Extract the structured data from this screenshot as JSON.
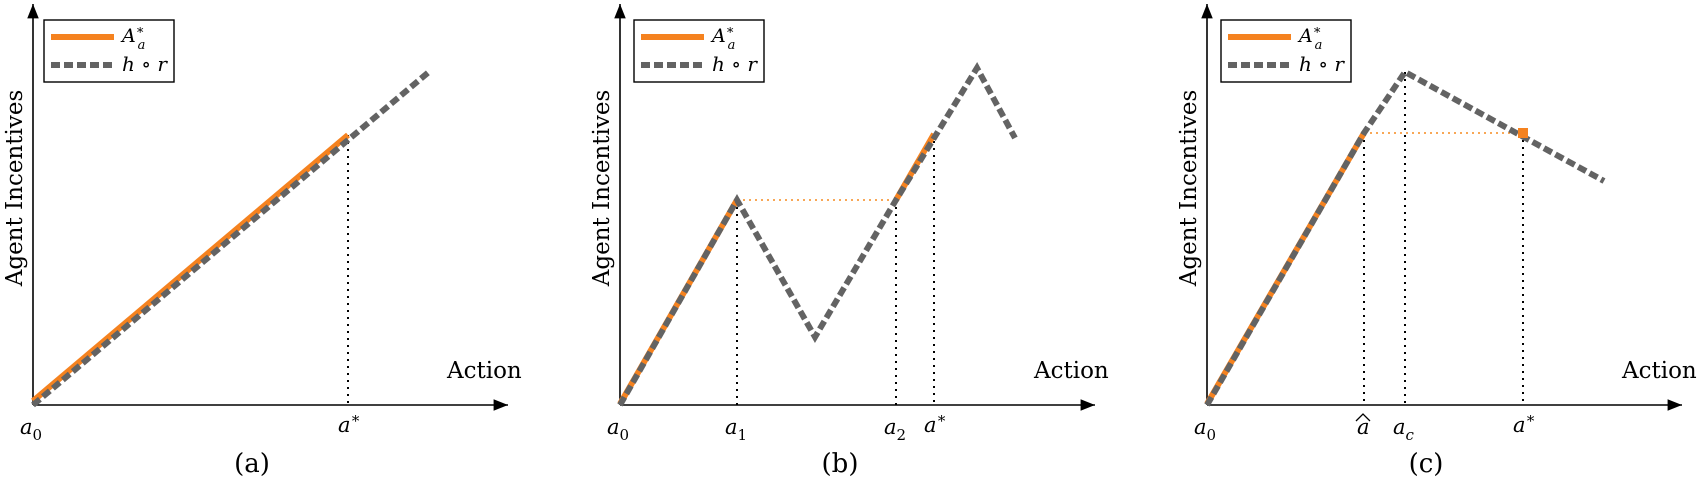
{
  "chart_data": [
    {
      "type": "line",
      "caption": "(a)",
      "ylabel": "Agent Incentives",
      "xlabel": "Action",
      "legend": [
        "A*_a",
        "h ∘ r"
      ],
      "legend_placement": "top-left",
      "x_ticks": [
        "a0",
        "a*"
      ],
      "series": [
        {
          "name": "A*_a",
          "style": "solid-orange",
          "points": [
            [
              0,
              0
            ],
            [
              1,
              1
            ]
          ]
        },
        {
          "name": "h ∘ r",
          "style": "dashed-gray",
          "points": [
            [
              0,
              0
            ],
            [
              1.26,
              1.26
            ]
          ]
        }
      ]
    },
    {
      "type": "line",
      "caption": "(b)",
      "ylabel": "Agent Incentives",
      "xlabel": "Action",
      "legend": [
        "A*_a",
        "h ∘ r"
      ],
      "legend_placement": "top-left",
      "x_ticks": [
        "a0",
        "a1",
        "a2",
        "a*"
      ],
      "series": [
        {
          "name": "A*_a",
          "style": "solid-orange",
          "points": [
            [
              0,
              0
            ],
            [
              0.375,
              0.6
            ]
          ],
          "points2": [
            [
              0.875,
              0.6
            ],
            [
              1,
              0.8
            ]
          ]
        },
        {
          "name": "h ∘ r",
          "style": "dashed-gray",
          "points": [
            [
              0,
              0
            ],
            [
              0.375,
              0.6
            ],
            [
              0.625,
              0.2
            ],
            [
              0.875,
              0.6
            ],
            [
              1.125,
              1.0
            ],
            [
              1.25,
              0.8
            ]
          ]
        }
      ]
    },
    {
      "type": "line",
      "caption": "(c)",
      "ylabel": "Agent Incentives",
      "xlabel": "Action",
      "legend": [
        "A*_a",
        "h ∘ r"
      ],
      "legend_placement": "top-left",
      "x_ticks": [
        "a0",
        "â",
        "ac",
        "a*"
      ],
      "series": [
        {
          "name": "A*_a",
          "style": "solid-orange",
          "points": [
            [
              0,
              0
            ],
            [
              0.5,
              0.8
            ]
          ],
          "marker": [
            1,
            0.8
          ]
        },
        {
          "name": "h ∘ r",
          "style": "dashed-gray",
          "points": [
            [
              0,
              0
            ],
            [
              0.5,
              0.8
            ],
            [
              0.625,
              1.0
            ],
            [
              1.25,
              0.67
            ]
          ]
        }
      ]
    }
  ]
}
